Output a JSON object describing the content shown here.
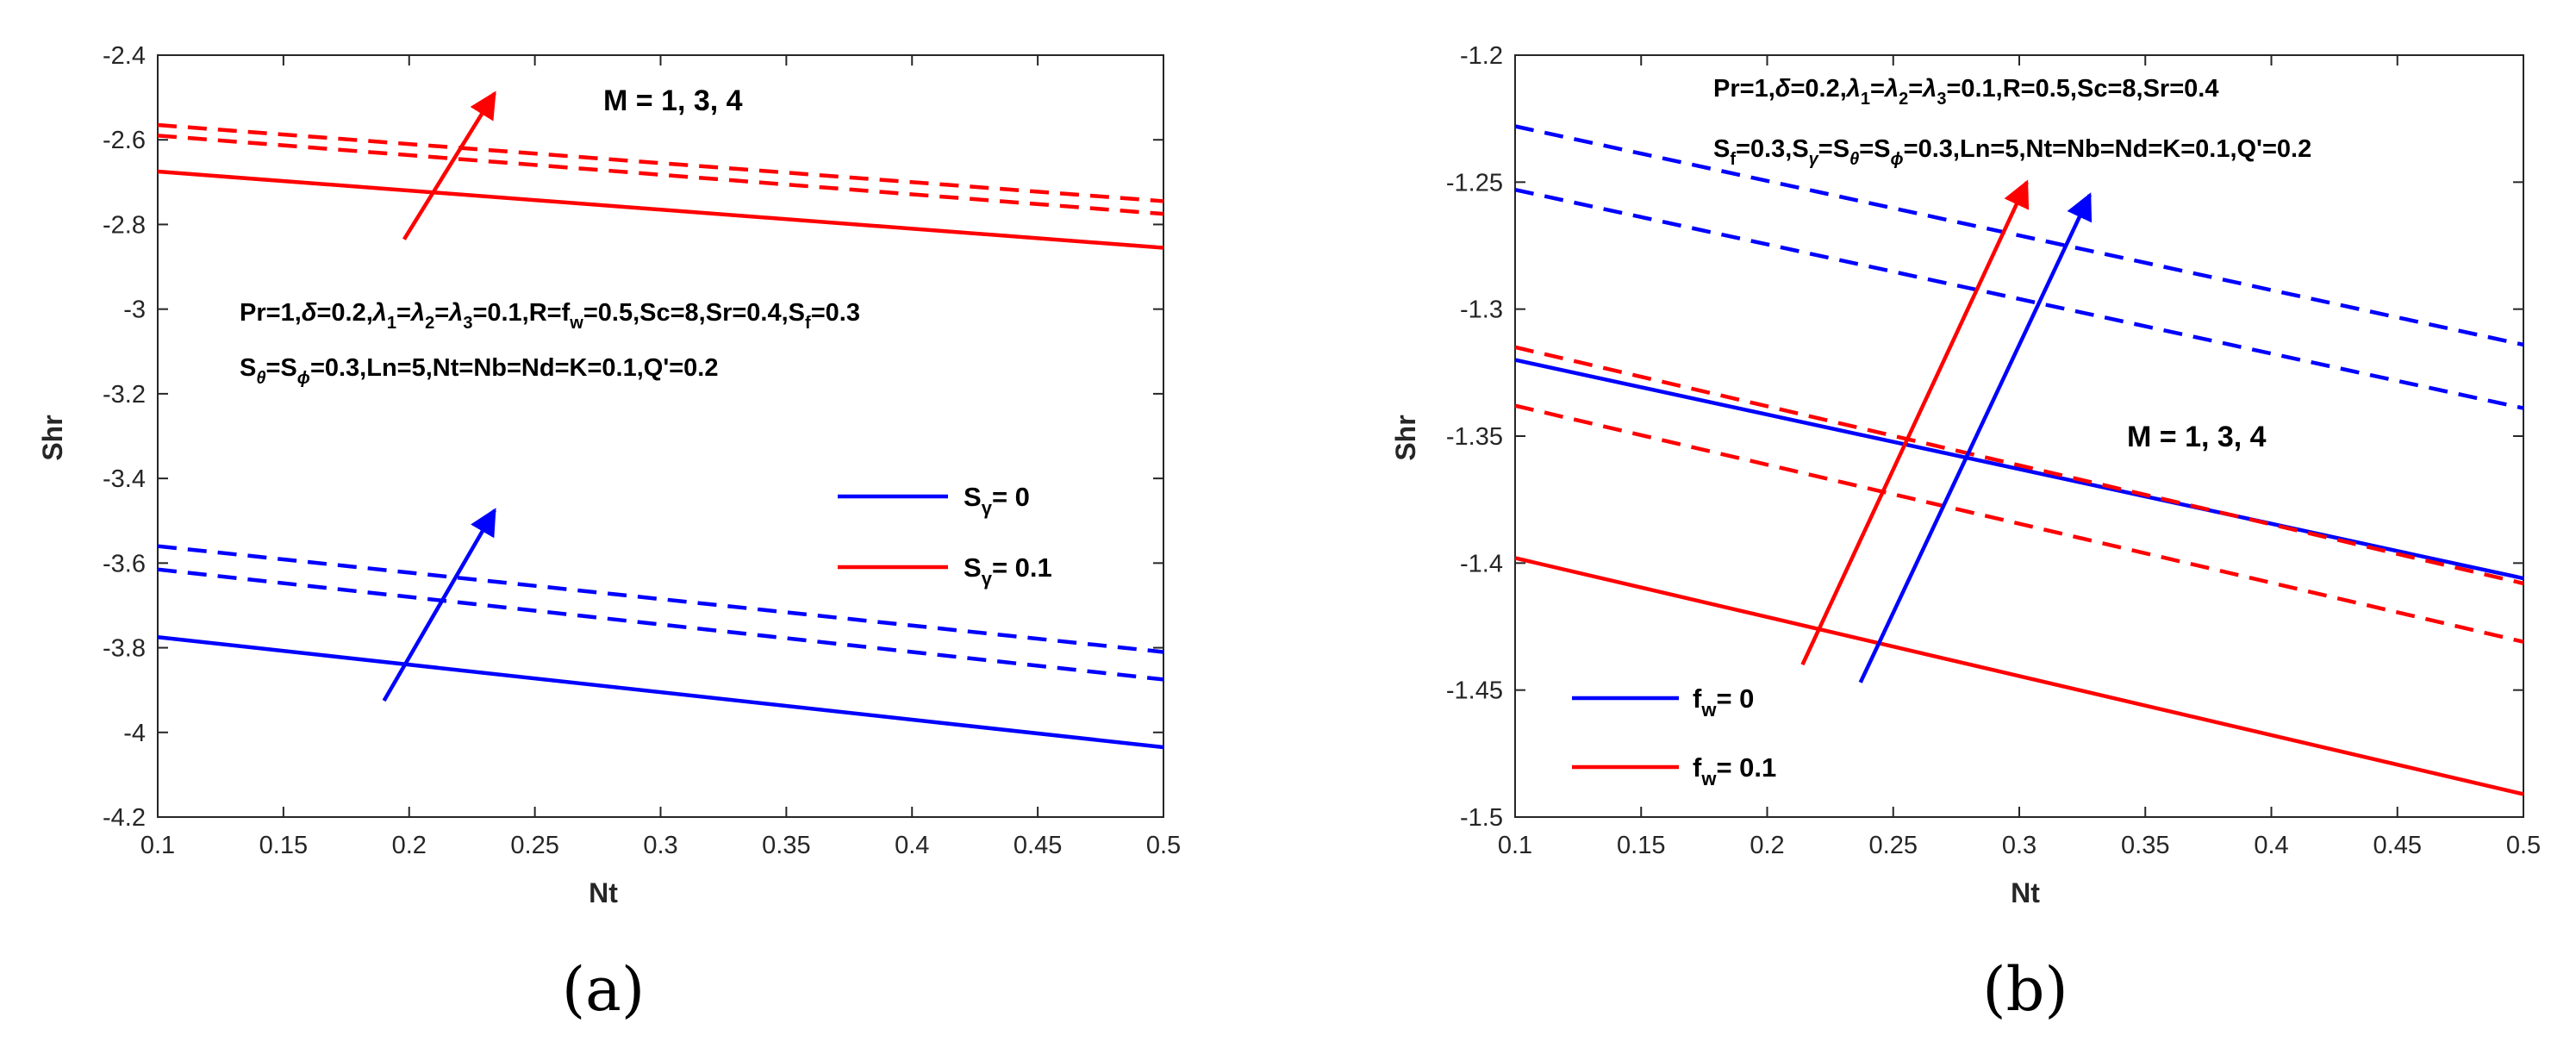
{
  "chart_data": [
    {
      "panel": "a",
      "panel_label": "(a)",
      "type": "line",
      "xlabel": "Nt",
      "ylabel": "Shr",
      "xlim": [
        0.1,
        0.5
      ],
      "ylim": [
        -4.2,
        -2.4
      ],
      "xticks": [
        "0.1",
        "0.15",
        "0.2",
        "0.25",
        "0.3",
        "0.35",
        "0.4",
        "0.45",
        "0.5"
      ],
      "yticks": [
        "-2.4",
        "-2.6",
        "-2.8",
        "-3",
        "-3.2",
        "-3.4",
        "-3.6",
        "-3.8",
        "-4",
        "-4.2"
      ],
      "annotation_m": "M = 1, 3, 4",
      "series": [
        {
          "name": "S_gamma = 0, M = 1",
          "color": "#0000ff",
          "style": "solid",
          "x": [
            0.1,
            0.5
          ],
          "y": [
            -3.775,
            -4.035
          ]
        },
        {
          "name": "S_gamma = 0, M = 3",
          "color": "#0000ff",
          "style": "dashed",
          "x": [
            0.1,
            0.5
          ],
          "y": [
            -3.615,
            -3.875
          ]
        },
        {
          "name": "S_gamma = 0, M = 4",
          "color": "#0000ff",
          "style": "dashed",
          "x": [
            0.1,
            0.5
          ],
          "y": [
            -3.56,
            -3.81
          ]
        },
        {
          "name": "S_gamma = 0.1, M = 1",
          "color": "#ff0000",
          "style": "solid",
          "x": [
            0.1,
            0.5
          ],
          "y": [
            -2.675,
            -2.855
          ]
        },
        {
          "name": "S_gamma = 0.1, M = 3",
          "color": "#ff0000",
          "style": "dashed",
          "x": [
            0.1,
            0.5
          ],
          "y": [
            -2.59,
            -2.775
          ]
        },
        {
          "name": "S_gamma = 0.1, M = 4",
          "color": "#ff0000",
          "style": "dashed",
          "x": [
            0.1,
            0.5
          ],
          "y": [
            -2.565,
            -2.745
          ]
        }
      ],
      "arrows": [
        {
          "color": "#ff0000",
          "from": [
            0.198,
            -2.835
          ],
          "to": [
            0.234,
            -2.49
          ]
        },
        {
          "color": "#0000ff",
          "from": [
            0.19,
            -3.925
          ],
          "to": [
            0.234,
            -3.475
          ]
        }
      ],
      "legend": [
        {
          "label": "S",
          "sub": "γ",
          "rest": "= 0",
          "color": "#0000ff"
        },
        {
          "label": "S",
          "sub": "γ",
          "rest": "= 0.1",
          "color": "#ff0000"
        }
      ]
    },
    {
      "panel": "b",
      "panel_label": "(b)",
      "type": "line",
      "xlabel": "Nt",
      "ylabel": "Shr",
      "xlim": [
        0.1,
        0.5
      ],
      "ylim": [
        -1.5,
        -1.2
      ],
      "xticks": [
        "0.1",
        "0.15",
        "0.2",
        "0.25",
        "0.3",
        "0.35",
        "0.4",
        "0.45",
        "0.5"
      ],
      "yticks": [
        "-1.2",
        "-1.25",
        "-1.3",
        "-1.35",
        "-1.4",
        "-1.45",
        "-1.5"
      ],
      "annotation_m": "M = 1, 3, 4",
      "series": [
        {
          "name": "f_w = 0, M = 1",
          "color": "#0000ff",
          "style": "solid",
          "x": [
            0.1,
            0.5
          ],
          "y": [
            -1.32,
            -1.406
          ]
        },
        {
          "name": "f_w = 0, M = 3",
          "color": "#0000ff",
          "style": "dashed",
          "x": [
            0.1,
            0.5
          ],
          "y": [
            -1.253,
            -1.339
          ]
        },
        {
          "name": "f_w = 0, M = 4",
          "color": "#0000ff",
          "style": "dashed",
          "x": [
            0.1,
            0.5
          ],
          "y": [
            -1.228,
            -1.314
          ]
        },
        {
          "name": "f_w = 0.1, M = 1",
          "color": "#ff0000",
          "style": "solid",
          "x": [
            0.1,
            0.5
          ],
          "y": [
            -1.398,
            -1.491
          ]
        },
        {
          "name": "f_w = 0.1, M = 3",
          "color": "#ff0000",
          "style": "dashed",
          "x": [
            0.1,
            0.5
          ],
          "y": [
            -1.338,
            -1.431
          ]
        },
        {
          "name": "f_w = 0.1, M = 4",
          "color": "#ff0000",
          "style": "dashed",
          "x": [
            0.1,
            0.5
          ],
          "y": [
            -1.315,
            -1.408
          ]
        }
      ],
      "arrows": [
        {
          "color": "#ff0000",
          "from": [
            0.214,
            -1.44
          ],
          "to": [
            0.303,
            -1.25
          ]
        },
        {
          "color": "#0000ff",
          "from": [
            0.237,
            -1.447
          ],
          "to": [
            0.328,
            -1.255
          ]
        }
      ],
      "legend": [
        {
          "label": "f",
          "sub": "w",
          "rest": "= 0",
          "color": "#0000ff"
        },
        {
          "label": "f",
          "sub": "w",
          "rest": "= 0.1",
          "color": "#ff0000"
        }
      ]
    }
  ]
}
